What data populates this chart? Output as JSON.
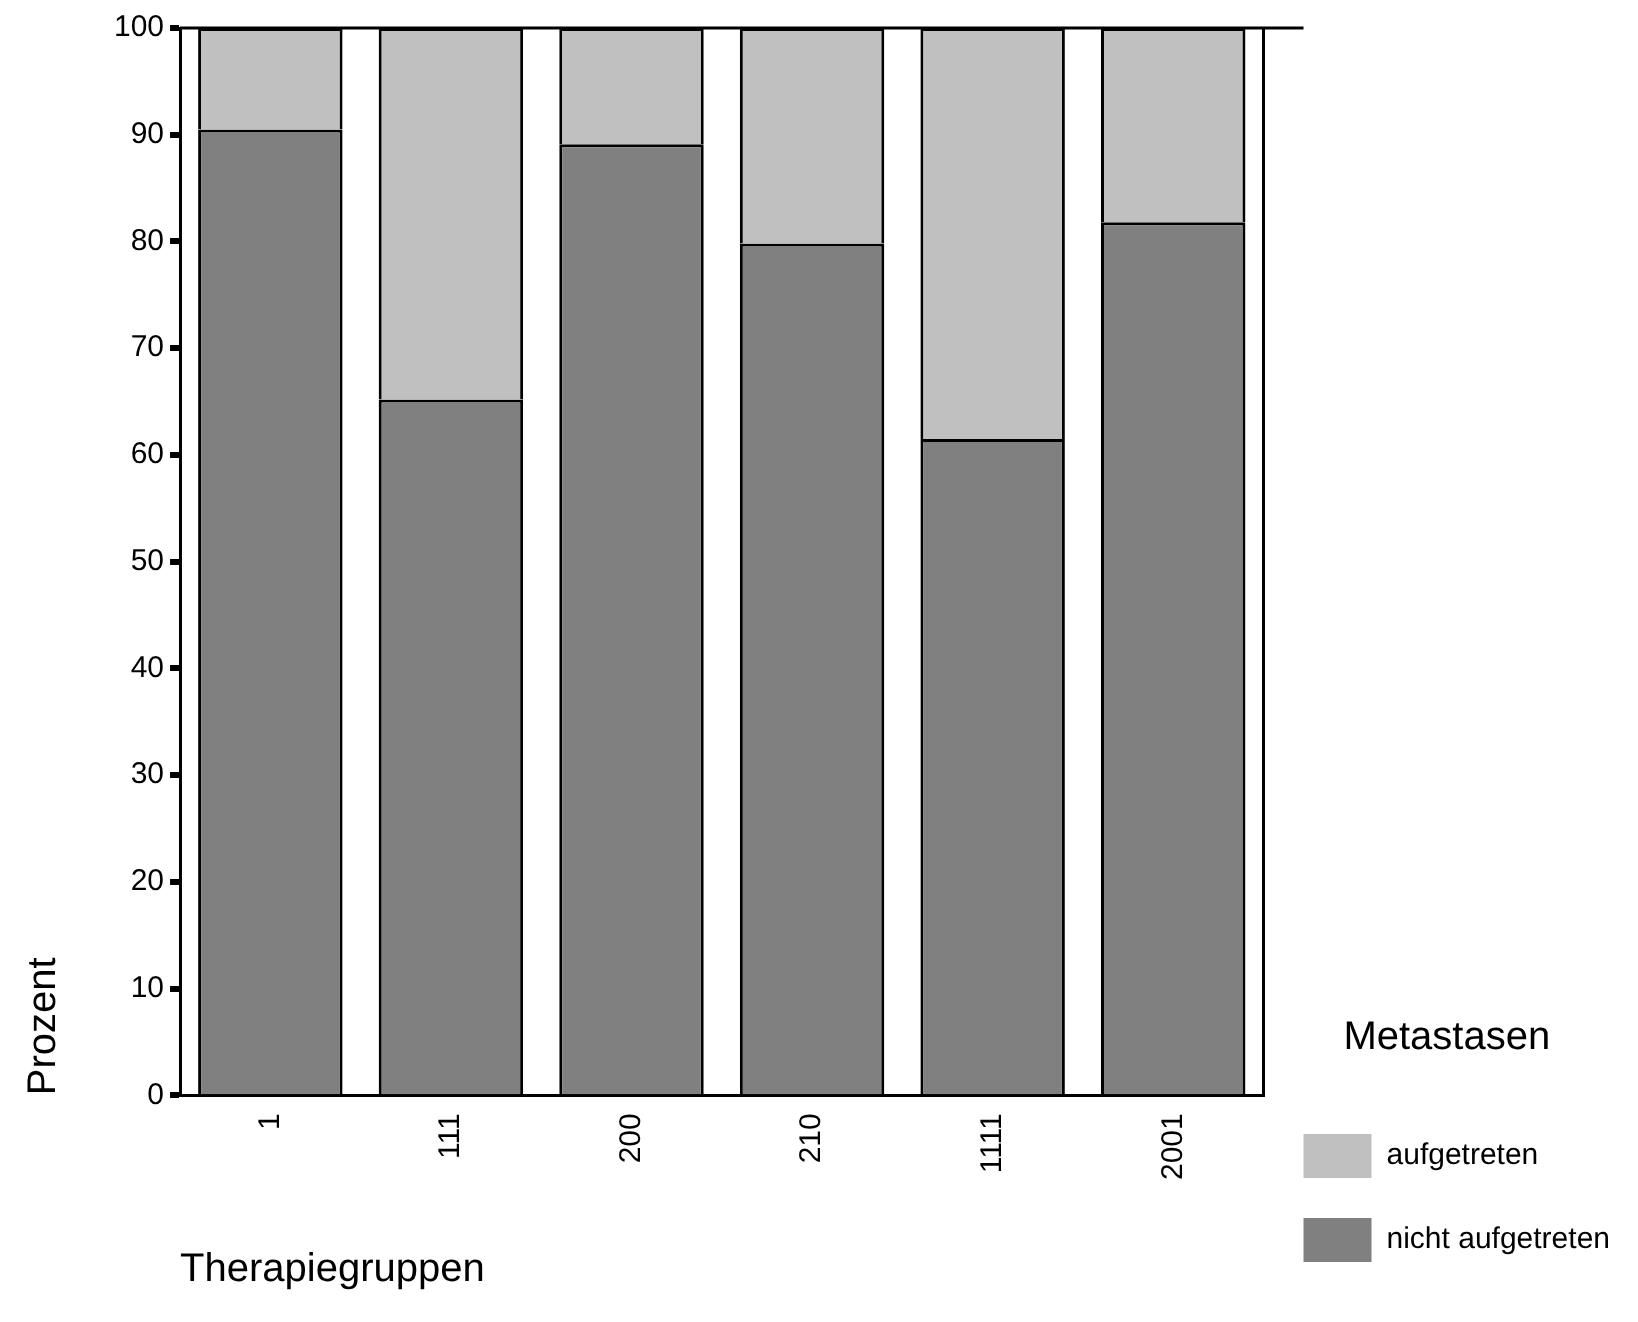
{
  "chart_data": {
    "type": "bar",
    "stacked": true,
    "xlabel": "Therapiegruppen",
    "ylabel": "Prozent",
    "legend_title": "Metastasen",
    "legend": "right",
    "categories": [
      "1",
      "111",
      "200",
      "210",
      "1111",
      "2001"
    ],
    "series": [
      {
        "name": "nicht aufgetreten",
        "color": "#808080",
        "values": [
          90.5,
          65.2,
          89.1,
          79.8,
          61.5,
          81.8
        ]
      },
      {
        "name": "aufgetreten",
        "color": "#c0c0c0",
        "values": [
          9.5,
          34.8,
          10.9,
          20.2,
          38.5,
          18.2
        ]
      }
    ],
    "ylim": [
      0,
      100
    ],
    "yticks": [
      0,
      10,
      20,
      30,
      40,
      50,
      60,
      70,
      80,
      90,
      100
    ],
    "grid": false
  }
}
